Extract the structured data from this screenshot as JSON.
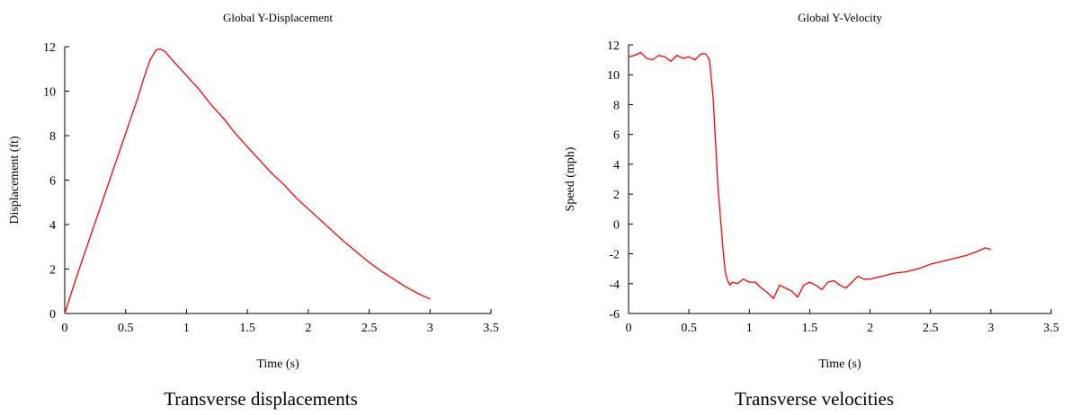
{
  "chart_data": [
    {
      "type": "line",
      "title": "Global Y-Displacement",
      "xlabel": "Time (s)",
      "ylabel": "Displacement (ft)",
      "xlim": [
        0,
        3.5
      ],
      "ylim": [
        0,
        12
      ],
      "xticks": [
        "0",
        "0.5",
        "1",
        "1.5",
        "2",
        "2.5",
        "3",
        "3.5"
      ],
      "yticks": [
        "0",
        "2",
        "4",
        "6",
        "8",
        "10",
        "12"
      ],
      "line_color": "#ff0000",
      "grid": false,
      "caption": "Transverse displacements",
      "x": [
        0,
        0.1,
        0.2,
        0.3,
        0.4,
        0.5,
        0.6,
        0.65,
        0.7,
        0.75,
        0.78,
        0.82,
        0.9,
        1.0,
        1.1,
        1.2,
        1.3,
        1.4,
        1.5,
        1.6,
        1.7,
        1.8,
        1.9,
        2.0,
        2.1,
        2.2,
        2.3,
        2.4,
        2.5,
        2.6,
        2.7,
        2.8,
        2.9,
        3.0
      ],
      "y": [
        0,
        1.7,
        3.3,
        4.9,
        6.5,
        8.1,
        9.7,
        10.6,
        11.4,
        11.85,
        11.9,
        11.8,
        11.3,
        10.7,
        10.1,
        9.4,
        8.8,
        8.1,
        7.5,
        6.9,
        6.3,
        5.8,
        5.2,
        4.7,
        4.2,
        3.7,
        3.2,
        2.75,
        2.3,
        1.9,
        1.55,
        1.2,
        0.9,
        0.65
      ]
    },
    {
      "type": "line",
      "title": "Global Y-Velocity",
      "xlabel": "Time (s)",
      "ylabel": "Speed (mph)",
      "xlim": [
        0,
        3.5
      ],
      "ylim": [
        -6,
        12
      ],
      "xticks": [
        "0",
        "0.5",
        "1",
        "1.5",
        "2",
        "2.5",
        "3",
        "3.5"
      ],
      "yticks": [
        "-6",
        "-4",
        "-2",
        "0",
        "2",
        "4",
        "6",
        "8",
        "10",
        "12"
      ],
      "line_color": "#ff0000",
      "grid": false,
      "caption": "Transverse velocities",
      "x": [
        0,
        0.05,
        0.1,
        0.15,
        0.2,
        0.25,
        0.3,
        0.35,
        0.4,
        0.45,
        0.5,
        0.55,
        0.6,
        0.64,
        0.67,
        0.7,
        0.72,
        0.74,
        0.76,
        0.78,
        0.8,
        0.82,
        0.84,
        0.86,
        0.9,
        0.95,
        1.0,
        1.05,
        1.1,
        1.15,
        1.2,
        1.25,
        1.3,
        1.35,
        1.4,
        1.45,
        1.5,
        1.55,
        1.6,
        1.65,
        1.7,
        1.75,
        1.8,
        1.85,
        1.9,
        1.95,
        2.0,
        2.1,
        2.2,
        2.3,
        2.4,
        2.5,
        2.6,
        2.7,
        2.8,
        2.9,
        2.95,
        3.0
      ],
      "y": [
        11.2,
        11.3,
        11.5,
        11.1,
        11.0,
        11.3,
        11.2,
        10.9,
        11.3,
        11.1,
        11.2,
        11.0,
        11.4,
        11.4,
        11.0,
        8.5,
        5.5,
        2.5,
        0.5,
        -1.5,
        -3.2,
        -3.8,
        -4.1,
        -3.9,
        -4.0,
        -3.7,
        -3.9,
        -3.9,
        -4.3,
        -4.6,
        -5.0,
        -4.1,
        -4.3,
        -4.5,
        -4.9,
        -4.1,
        -3.9,
        -4.1,
        -4.4,
        -3.9,
        -3.8,
        -4.1,
        -4.3,
        -3.9,
        -3.5,
        -3.7,
        -3.7,
        -3.5,
        -3.3,
        -3.2,
        -3.0,
        -2.7,
        -2.5,
        -2.3,
        -2.1,
        -1.8,
        -1.6,
        -1.7
      ]
    }
  ]
}
